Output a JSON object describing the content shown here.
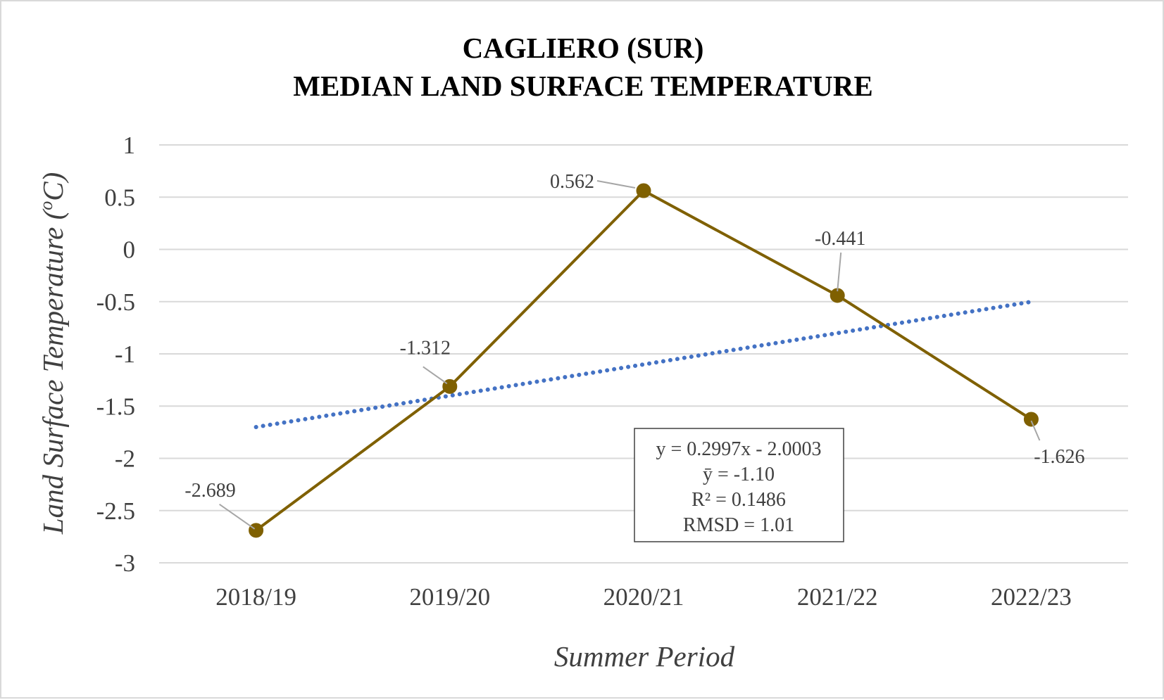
{
  "chart_data": {
    "type": "line",
    "title_lines": [
      "CAGLIERO (SUR)",
      "MEDIAN LAND SURFACE TEMPERATURE"
    ],
    "xlabel": "Summer Period",
    "ylabel": "Land Surface Temperature (",
    "ylabel_sup": "o",
    "ylabel_tail": "C)",
    "categories": [
      "2018/19",
      "2019/20",
      "2020/21",
      "2021/22",
      "2022/23"
    ],
    "series": [
      {
        "values": [
          -2.689,
          -1.312,
          0.562,
          -0.441,
          -1.626
        ],
        "labels": [
          "-2.689",
          "-1.312",
          "0.562",
          "-0.441",
          "-1.626"
        ],
        "color": "#7f6000",
        "marker": "circle"
      }
    ],
    "trendline": {
      "type": "linear",
      "slope": 0.2997,
      "intercept": -2.0003,
      "color": "#4472c4",
      "style": "dotted"
    },
    "stats_box": [
      "y = 0.2997x - 2.0003",
      "ȳ = -1.10",
      "R² = 0.1486",
      "RMSD = 1.01"
    ],
    "ylim": [
      -3,
      1
    ],
    "yticks": [
      1,
      0.5,
      0,
      -0.5,
      -1,
      -1.5,
      -2,
      -2.5,
      -3
    ],
    "ytick_labels": [
      "1",
      "0.5",
      "0",
      "-0.5",
      "-1",
      "-1.5",
      "-2",
      "-2.5",
      "-3"
    ],
    "grid": true,
    "legend": "none"
  }
}
